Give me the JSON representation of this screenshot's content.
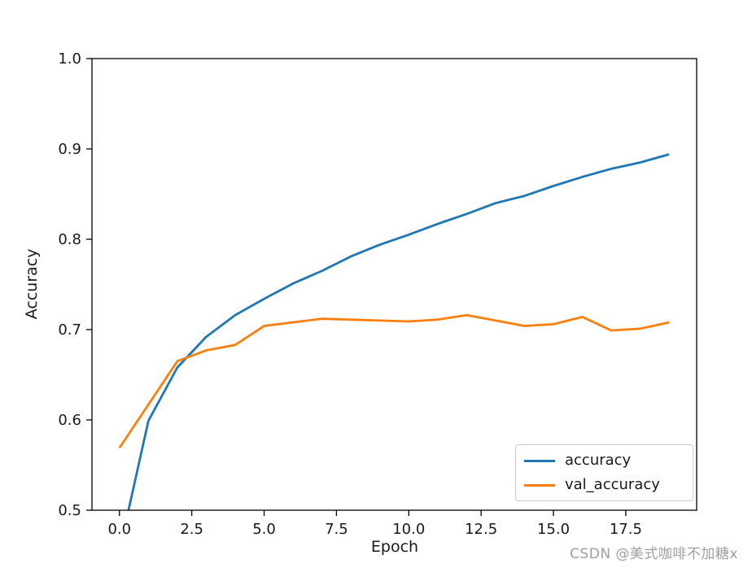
{
  "chart_data": {
    "type": "line",
    "x": [
      0,
      1,
      2,
      3,
      4,
      5,
      6,
      7,
      8,
      9,
      10,
      11,
      12,
      13,
      14,
      15,
      16,
      17,
      18,
      19
    ],
    "series": [
      {
        "name": "accuracy",
        "color": "#1f77b4",
        "values": [
          0.455,
          0.599,
          0.658,
          0.692,
          0.716,
          0.734,
          0.751,
          0.765,
          0.781,
          0.794,
          0.805,
          0.817,
          0.828,
          0.84,
          0.848,
          0.859,
          0.869,
          0.878,
          0.885,
          0.894
        ]
      },
      {
        "name": "val_accuracy",
        "color": "#ff7f0e",
        "values": [
          0.569,
          0.617,
          0.665,
          0.677,
          0.683,
          0.704,
          0.708,
          0.712,
          0.711,
          0.71,
          0.709,
          0.711,
          0.716,
          0.71,
          0.704,
          0.706,
          0.714,
          0.699,
          0.701,
          0.708
        ]
      }
    ],
    "title": "",
    "xlabel": "Epoch",
    "ylabel": "Accuracy",
    "xlim": [
      -0.95,
      19.95
    ],
    "ylim": [
      0.5,
      1.0
    ],
    "xtick_values": [
      0.0,
      2.5,
      5.0,
      7.5,
      10.0,
      12.5,
      15.0,
      17.5
    ],
    "xtick_labels": [
      "0.0",
      "2.5",
      "5.0",
      "7.5",
      "10.0",
      "12.5",
      "15.0",
      "17.5"
    ],
    "ytick_values": [
      0.5,
      0.6,
      0.7,
      0.8,
      0.9,
      1.0
    ],
    "ytick_labels": [
      "0.5",
      "0.6",
      "0.7",
      "0.8",
      "0.9",
      "1.0"
    ],
    "grid": false,
    "legend_position": "lower right",
    "spine_color": "#000000",
    "tick_label_color": "#1a1a1a"
  },
  "legend": {
    "items": [
      {
        "label": "accuracy"
      },
      {
        "label": "val_accuracy"
      }
    ]
  },
  "watermark": {
    "text": "CSDN @美式咖啡不加糖x",
    "color": "#9f9f9f"
  }
}
